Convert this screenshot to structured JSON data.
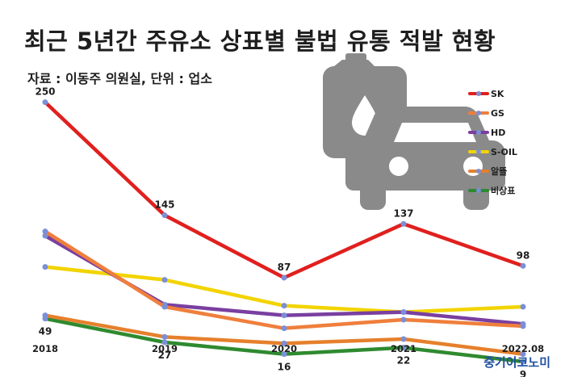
{
  "header": {
    "title": "최근 5년간 주유소 상표별 불법 유통 적발 현황",
    "source": "자료 : 이동주 의원실, 단위 : 업소"
  },
  "footer": {
    "brand": "중기이코노미"
  },
  "icon": {
    "name": "car-with-fuel-can-icon",
    "color": "#8a8a8a"
  },
  "chart_data": {
    "type": "line",
    "categories": [
      "2018",
      "2019",
      "2020",
      "2021",
      "2022.08"
    ],
    "ylim": [
      0,
      270
    ],
    "grid": false,
    "legend_position": "top-right",
    "series": [
      {
        "name": "SK",
        "color": "#e0201e",
        "values": [
          250,
          145,
          87,
          137,
          98
        ],
        "show_labels": true
      },
      {
        "name": "GS",
        "color": "#ef7f3c",
        "values": [
          130,
          60,
          40,
          48,
          42
        ]
      },
      {
        "name": "HD",
        "color": "#7a3fa0",
        "values": [
          126,
          62,
          52,
          55,
          44
        ]
      },
      {
        "name": "S-OIL",
        "color": "#f2d400",
        "values": [
          97,
          85,
          61,
          55,
          60
        ]
      },
      {
        "name": "알뜰",
        "color": "#e6802c",
        "values": [
          52,
          32,
          26,
          30,
          16
        ]
      },
      {
        "name": "비상표",
        "color": "#2f8a2f",
        "values": [
          49,
          27,
          16,
          22,
          9
        ],
        "show_labels": true
      }
    ],
    "extra_series_colors": {
      "gray_band": "#8c8c8c"
    }
  }
}
